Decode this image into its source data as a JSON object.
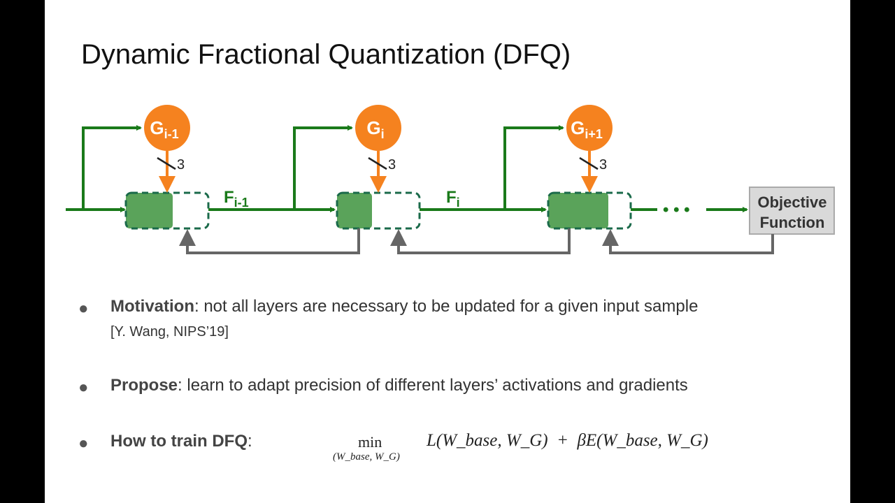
{
  "title": "Dynamic Fractional Quantization (DFQ)",
  "diagram": {
    "gates": [
      "G",
      "G",
      "G"
    ],
    "gate_subs": [
      "i-1",
      "i",
      "i+1"
    ],
    "bits": "3",
    "features": [
      "F",
      "F"
    ],
    "feature_subs": [
      "i-1",
      "i"
    ],
    "dots": "• • •",
    "objective": [
      "Objective",
      "Function"
    ],
    "colors": {
      "green": "#1a7a1a",
      "block": "#5aa35a",
      "orange": "#f5821f",
      "gray": "#666666"
    }
  },
  "bullets": [
    {
      "head": "Motivation",
      "rest": ": not all layers are necessary to be updated for a given input sample",
      "ref": "[Y. Wang, NIPS’19]"
    },
    {
      "head": "Propose",
      "rest": ": learn to adapt precision of different layers’ activations and gradients"
    },
    {
      "head": "How to train DFQ",
      "rest": ":"
    }
  ],
  "formula": {
    "min": "min",
    "sub": "(W_base, W_G)",
    "expr": "L(W_base, W_G)  +  βE(W_base, W_G)"
  }
}
